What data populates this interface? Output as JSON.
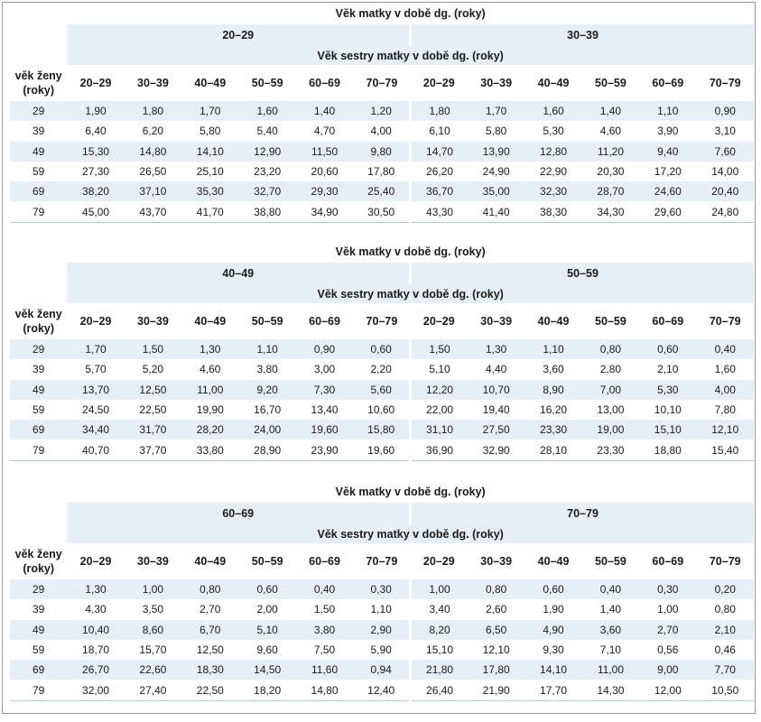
{
  "blocks": [
    {
      "title": "Věk matky v době dg. (roky)",
      "group_left": "20–29",
      "group_right": "30–39",
      "subtitle": "Věk sestry matky v době dg. (roky)",
      "row_header_line1": "věk ženy",
      "row_header_line2": "(roky)",
      "columns": [
        "20–29",
        "30–39",
        "40–49",
        "50–59",
        "60–69",
        "70–79",
        "20–29",
        "30–39",
        "40–49",
        "50–59",
        "60–69",
        "70–79"
      ],
      "rows": [
        {
          "age": "29",
          "values": [
            "1,90",
            "1,80",
            "1,70",
            "1,60",
            "1,40",
            "1,20",
            "1,80",
            "1,70",
            "1,60",
            "1,40",
            "1,10",
            "0,90"
          ]
        },
        {
          "age": "39",
          "values": [
            "6,40",
            "6,20",
            "5,80",
            "5,40",
            "4,70",
            "4,00",
            "6,10",
            "5,80",
            "5,30",
            "4,60",
            "3,90",
            "3,10"
          ]
        },
        {
          "age": "49",
          "values": [
            "15,30",
            "14,80",
            "14,10",
            "12,90",
            "11,50",
            "9,80",
            "14,70",
            "13,90",
            "12,80",
            "11,20",
            "9,40",
            "7,60"
          ]
        },
        {
          "age": "59",
          "values": [
            "27,30",
            "26,50",
            "25,10",
            "23,20",
            "20,60",
            "17,80",
            "26,20",
            "24,90",
            "22,90",
            "20,30",
            "17,20",
            "14,00"
          ]
        },
        {
          "age": "69",
          "values": [
            "38,20",
            "37,10",
            "35,30",
            "32,70",
            "29,30",
            "25,40",
            "36,70",
            "35,00",
            "32,30",
            "28,70",
            "24,60",
            "20,40"
          ]
        },
        {
          "age": "79",
          "values": [
            "45,00",
            "43,70",
            "41,70",
            "38,80",
            "34,90",
            "30,50",
            "43,30",
            "41,40",
            "38,30",
            "34,30",
            "29,60",
            "24,80"
          ]
        }
      ]
    },
    {
      "title": "Věk matky v době dg. (roky)",
      "group_left": "40–49",
      "group_right": "50–59",
      "subtitle": "Věk sestry matky v době dg. (roky)",
      "row_header_line1": "věk ženy",
      "row_header_line2": "(roky)",
      "columns": [
        "20–29",
        "30–39",
        "40–49",
        "50–59",
        "60–69",
        "70–79",
        "20–29",
        "30–39",
        "40–49",
        "50–59",
        "60–69",
        "70–79"
      ],
      "rows": [
        {
          "age": "29",
          "values": [
            "1,70",
            "1,50",
            "1,30",
            "1,10",
            "0,90",
            "0,60",
            "1,50",
            "1,30",
            "1,10",
            "0,80",
            "0,60",
            "0,40"
          ]
        },
        {
          "age": "39",
          "values": [
            "5,70",
            "5,20",
            "4,60",
            "3,80",
            "3,00",
            "2,20",
            "5,10",
            "4,40",
            "3,60",
            "2,80",
            "2,10",
            "1,60"
          ]
        },
        {
          "age": "49",
          "values": [
            "13,70",
            "12,50",
            "11,00",
            "9,20",
            "7,30",
            "5,60",
            "12,20",
            "10,70",
            "8,90",
            "7,00",
            "5,30",
            "4,00"
          ]
        },
        {
          "age": "59",
          "values": [
            "24,50",
            "22,50",
            "19,90",
            "16,70",
            "13,40",
            "10,60",
            "22,00",
            "19,40",
            "16,20",
            "13,00",
            "10,10",
            "7,80"
          ]
        },
        {
          "age": "69",
          "values": [
            "34,40",
            "31,70",
            "28,20",
            "24,00",
            "19,60",
            "15,80",
            "31,10",
            "27,50",
            "23,30",
            "19,00",
            "15,10",
            "12,10"
          ]
        },
        {
          "age": "79",
          "values": [
            "40,70",
            "37,70",
            "33,80",
            "28,90",
            "23,90",
            "19,60",
            "36,90",
            "32,90",
            "28,10",
            "23,30",
            "18,80",
            "15,40"
          ]
        }
      ]
    },
    {
      "title": "Věk matky v době dg. (roky)",
      "group_left": "60–69",
      "group_right": "70–79",
      "subtitle": "Věk sestry matky v době dg. (roky)",
      "row_header_line1": "věk ženy",
      "row_header_line2": "(roky)",
      "columns": [
        "20–29",
        "30–39",
        "40–49",
        "50–59",
        "60–69",
        "70–79",
        "20–29",
        "30–39",
        "40–49",
        "50–59",
        "60–69",
        "70–79"
      ],
      "rows": [
        {
          "age": "29",
          "values": [
            "1,30",
            "1,00",
            "0,80",
            "0,60",
            "0,40",
            "0,30",
            "1,00",
            "0,80",
            "0,60",
            "0,40",
            "0,30",
            "0,20"
          ]
        },
        {
          "age": "39",
          "values": [
            "4,30",
            "3,50",
            "2,70",
            "2,00",
            "1,50",
            "1,10",
            "3,40",
            "2,60",
            "1,90",
            "1,40",
            "1,00",
            "0,80"
          ]
        },
        {
          "age": "49",
          "values": [
            "10,40",
            "8,60",
            "6,70",
            "5,10",
            "3,80",
            "2,90",
            "8,20",
            "6,50",
            "4,90",
            "3,60",
            "2,70",
            "2,10"
          ]
        },
        {
          "age": "59",
          "values": [
            "18,70",
            "15,70",
            "12,50",
            "9,60",
            "7,50",
            "5,90",
            "15,10",
            "12,10",
            "9,30",
            "7,10",
            "0,56",
            "0,46"
          ]
        },
        {
          "age": "69",
          "values": [
            "26,70",
            "22,60",
            "18,30",
            "14,50",
            "11,60",
            "0,94",
            "21,80",
            "17,80",
            "14,10",
            "11,00",
            "9,00",
            "7,70"
          ]
        },
        {
          "age": "79",
          "values": [
            "32,00",
            "27,40",
            "22,50",
            "18,20",
            "14,80",
            "12,40",
            "26,40",
            "21,90",
            "17,70",
            "14,30",
            "12,00",
            "10,50"
          ]
        }
      ]
    }
  ]
}
